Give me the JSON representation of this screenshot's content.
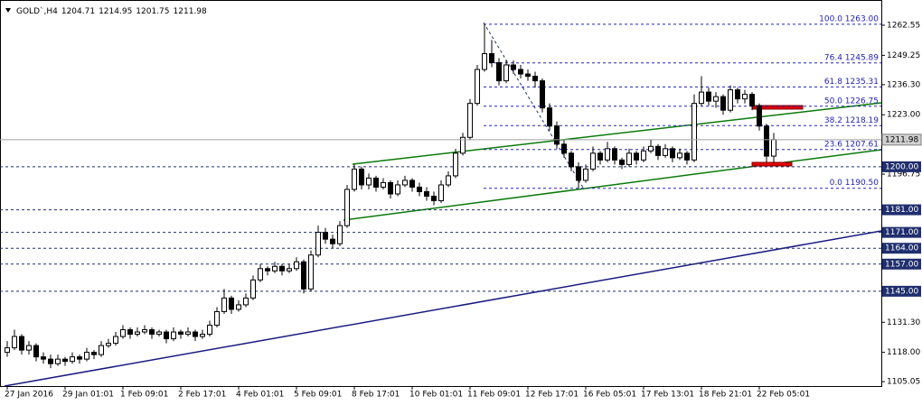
{
  "chart_data": {
    "type": "candlestick",
    "title": "GOLD`,H4",
    "ylim": [
      1103.1,
      1273.7
    ],
    "yticks": [
      1262.55,
      1249.25,
      {
        "value": 1236.3,
        "label": "1236.30"
      },
      {
        "value": 1223,
        "label": "1223.00"
      },
      1196.75,
      {
        "value": 1131.3,
        "label": "1131.30"
      },
      {
        "value": 1118,
        "label": "1118.00"
      },
      1105.05
    ],
    "up_color": "#ffffff",
    "down_color": "#000000",
    "outline_color": "#000000",
    "levels": [
      {
        "value": 1200,
        "label": "1200.00"
      },
      {
        "value": 1181,
        "label": "1181.00"
      },
      {
        "value": 1171,
        "label": "1171.00"
      },
      {
        "value": 1164,
        "label": "1164.00"
      },
      {
        "value": 1157,
        "label": "1157.00"
      },
      {
        "value": 1145,
        "label": "1145.00"
      }
    ],
    "level_color": "#1f2f6e",
    "fibonacci": [
      {
        "value": 1263,
        "label": "100.0 1263.00"
      },
      {
        "value": 1245.89,
        "label": "76.4 1245.89"
      },
      {
        "value": 1235.31,
        "label": "61.8 1235.31"
      },
      {
        "value": 1226.75,
        "label": "50.0 1226.75"
      },
      {
        "value": 1218.19,
        "label": "38.2 1218.19"
      },
      {
        "value": 1207.61,
        "label": "23.6 1207.61"
      },
      {
        "value": 1190.5,
        "label": "0.0 1190.50"
      }
    ],
    "fib_color": "#2323b5",
    "categories": [
      "27 Jan 2016",
      null,
      null,
      null,
      null,
      null,
      null,
      null,
      "29 Jan 01:01",
      null,
      null,
      null,
      null,
      null,
      null,
      null,
      "1 Feb 09:01",
      null,
      null,
      null,
      null,
      null,
      null,
      null,
      "2 Feb 17:01",
      null,
      null,
      null,
      null,
      null,
      null,
      null,
      "4 Feb 01:01",
      null,
      null,
      null,
      null,
      null,
      null,
      null,
      "5 Feb 09:01",
      null,
      null,
      null,
      null,
      null,
      null,
      null,
      "8 Feb 17:01",
      null,
      null,
      null,
      null,
      null,
      null,
      null,
      "10 Feb 01:01",
      null,
      null,
      null,
      null,
      null,
      null,
      null,
      "11 Feb 09:01",
      null,
      null,
      null,
      null,
      null,
      null,
      null,
      "12 Feb 17:01",
      null,
      null,
      null,
      null,
      null,
      null,
      null,
      "16 Feb 05:01",
      null,
      null,
      null,
      null,
      null,
      null,
      null,
      "17 Feb 13:01",
      null,
      null,
      null,
      null,
      null,
      null,
      null,
      "18 Feb 21:01",
      null,
      null,
      null,
      null,
      null,
      null,
      null,
      "22 Feb 05:01",
      null,
      null
    ],
    "ohlc": [
      [
        1118,
        1123,
        1116,
        1120
      ],
      [
        1120,
        1128,
        1119,
        1125
      ],
      [
        1125,
        1126,
        1117,
        1119
      ],
      [
        1119,
        1123,
        1117,
        1121
      ],
      [
        1121,
        1122,
        1114,
        1116
      ],
      [
        1116,
        1118,
        1113,
        1115
      ],
      [
        1115,
        1117,
        1111,
        1113
      ],
      [
        1113,
        1117,
        1112,
        1115
      ],
      [
        1115,
        1116,
        1112,
        1114
      ],
      [
        1114,
        1118,
        1113,
        1116
      ],
      [
        1116,
        1117,
        1113,
        1115
      ],
      [
        1115,
        1120,
        1114,
        1118
      ],
      [
        1118,
        1119,
        1115,
        1117
      ],
      [
        1117,
        1123,
        1116,
        1121
      ],
      [
        1121,
        1124,
        1120,
        1122
      ],
      [
        1122,
        1127,
        1121,
        1125
      ],
      [
        1125,
        1130,
        1124,
        1128
      ],
      [
        1128,
        1129,
        1124,
        1126
      ],
      [
        1126,
        1129,
        1125,
        1127
      ],
      [
        1127,
        1130,
        1126,
        1128
      ],
      [
        1128,
        1129,
        1124,
        1126
      ],
      [
        1126,
        1128,
        1125,
        1127
      ],
      [
        1127,
        1128,
        1122,
        1124
      ],
      [
        1124,
        1129,
        1123,
        1127
      ],
      [
        1127,
        1128,
        1124,
        1126
      ],
      [
        1126,
        1129,
        1125,
        1127
      ],
      [
        1127,
        1128,
        1123,
        1125
      ],
      [
        1125,
        1128,
        1124,
        1126
      ],
      [
        1126,
        1132,
        1125,
        1130
      ],
      [
        1130,
        1138,
        1129,
        1136
      ],
      [
        1136,
        1146,
        1135,
        1142
      ],
      [
        1142,
        1143,
        1135,
        1137
      ],
      [
        1137,
        1141,
        1136,
        1139
      ],
      [
        1139,
        1144,
        1138,
        1142
      ],
      [
        1142,
        1152,
        1141,
        1150
      ],
      [
        1150,
        1157,
        1149,
        1155
      ],
      [
        1155,
        1156,
        1152,
        1154
      ],
      [
        1154,
        1158,
        1153,
        1156
      ],
      [
        1156,
        1157,
        1152,
        1154
      ],
      [
        1154,
        1157,
        1153,
        1155
      ],
      [
        1155,
        1160,
        1154,
        1158
      ],
      [
        1158,
        1159,
        1144,
        1146
      ],
      [
        1146,
        1163,
        1145,
        1161
      ],
      [
        1161,
        1174,
        1160,
        1171
      ],
      [
        1171,
        1173,
        1166,
        1168
      ],
      [
        1168,
        1170,
        1164,
        1166
      ],
      [
        1166,
        1176,
        1165,
        1174
      ],
      [
        1174,
        1192,
        1173,
        1190
      ],
      [
        1190,
        1201,
        1189,
        1199
      ],
      [
        1199,
        1200,
        1190,
        1192
      ],
      [
        1192,
        1197,
        1190,
        1195
      ],
      [
        1195,
        1196,
        1189,
        1191
      ],
      [
        1191,
        1195,
        1190,
        1193
      ],
      [
        1193,
        1194,
        1186,
        1188
      ],
      [
        1188,
        1194,
        1187,
        1192
      ],
      [
        1192,
        1196,
        1191,
        1194
      ],
      [
        1194,
        1195,
        1189,
        1191
      ],
      [
        1191,
        1193,
        1187,
        1189
      ],
      [
        1189,
        1191,
        1185,
        1187
      ],
      [
        1187,
        1189,
        1183,
        1185
      ],
      [
        1185,
        1194,
        1184,
        1192
      ],
      [
        1192,
        1198,
        1191,
        1196
      ],
      [
        1196,
        1208,
        1195,
        1206
      ],
      [
        1206,
        1215,
        1205,
        1213
      ],
      [
        1213,
        1230,
        1212,
        1228
      ],
      [
        1228,
        1245,
        1227,
        1243
      ],
      [
        1243,
        1263,
        1242,
        1250
      ],
      [
        1250,
        1256,
        1244,
        1246
      ],
      [
        1246,
        1248,
        1236,
        1238
      ],
      [
        1238,
        1247,
        1237,
        1245
      ],
      [
        1245,
        1247,
        1241,
        1243
      ],
      [
        1243,
        1245,
        1239,
        1241
      ],
      [
        1241,
        1243,
        1238,
        1240
      ],
      [
        1240,
        1242,
        1235,
        1238
      ],
      [
        1238,
        1239,
        1224,
        1226
      ],
      [
        1226,
        1228,
        1216,
        1218
      ],
      [
        1218,
        1220,
        1208,
        1210
      ],
      [
        1210,
        1212,
        1204,
        1206
      ],
      [
        1206,
        1207,
        1198,
        1200
      ],
      [
        1200,
        1202,
        1190.5,
        1194
      ],
      [
        1194,
        1201,
        1193,
        1199
      ],
      [
        1199,
        1209,
        1198,
        1206
      ],
      [
        1206,
        1207,
        1201,
        1203
      ],
      [
        1203,
        1211,
        1202,
        1208
      ],
      [
        1208,
        1209,
        1201,
        1203
      ],
      [
        1203,
        1204,
        1199,
        1201
      ],
      [
        1201,
        1208,
        1200,
        1206
      ],
      [
        1206,
        1207,
        1201,
        1203
      ],
      [
        1203,
        1209,
        1202,
        1207
      ],
      [
        1207,
        1212,
        1206,
        1209
      ],
      [
        1209,
        1210,
        1203,
        1205
      ],
      [
        1205,
        1210,
        1204,
        1208
      ],
      [
        1208,
        1209,
        1202,
        1204
      ],
      [
        1204,
        1208,
        1203,
        1206
      ],
      [
        1206,
        1207,
        1201,
        1203
      ],
      [
        1203,
        1232,
        1202,
        1228
      ],
      [
        1228,
        1240,
        1227,
        1233
      ],
      [
        1233,
        1235,
        1227,
        1229
      ],
      [
        1229,
        1233,
        1226,
        1231
      ],
      [
        1231,
        1232,
        1223,
        1225
      ],
      [
        1225,
        1236,
        1224,
        1234
      ],
      [
        1234,
        1235,
        1228,
        1230
      ],
      [
        1230,
        1234,
        1228,
        1232
      ],
      [
        1232,
        1233,
        1225,
        1227
      ],
      [
        1227,
        1228,
        1216,
        1218
      ],
      [
        1218,
        1219,
        1202,
        1204.71
      ],
      [
        1204.71,
        1214.95,
        1201.75,
        1211.98
      ]
    ]
  }
}
